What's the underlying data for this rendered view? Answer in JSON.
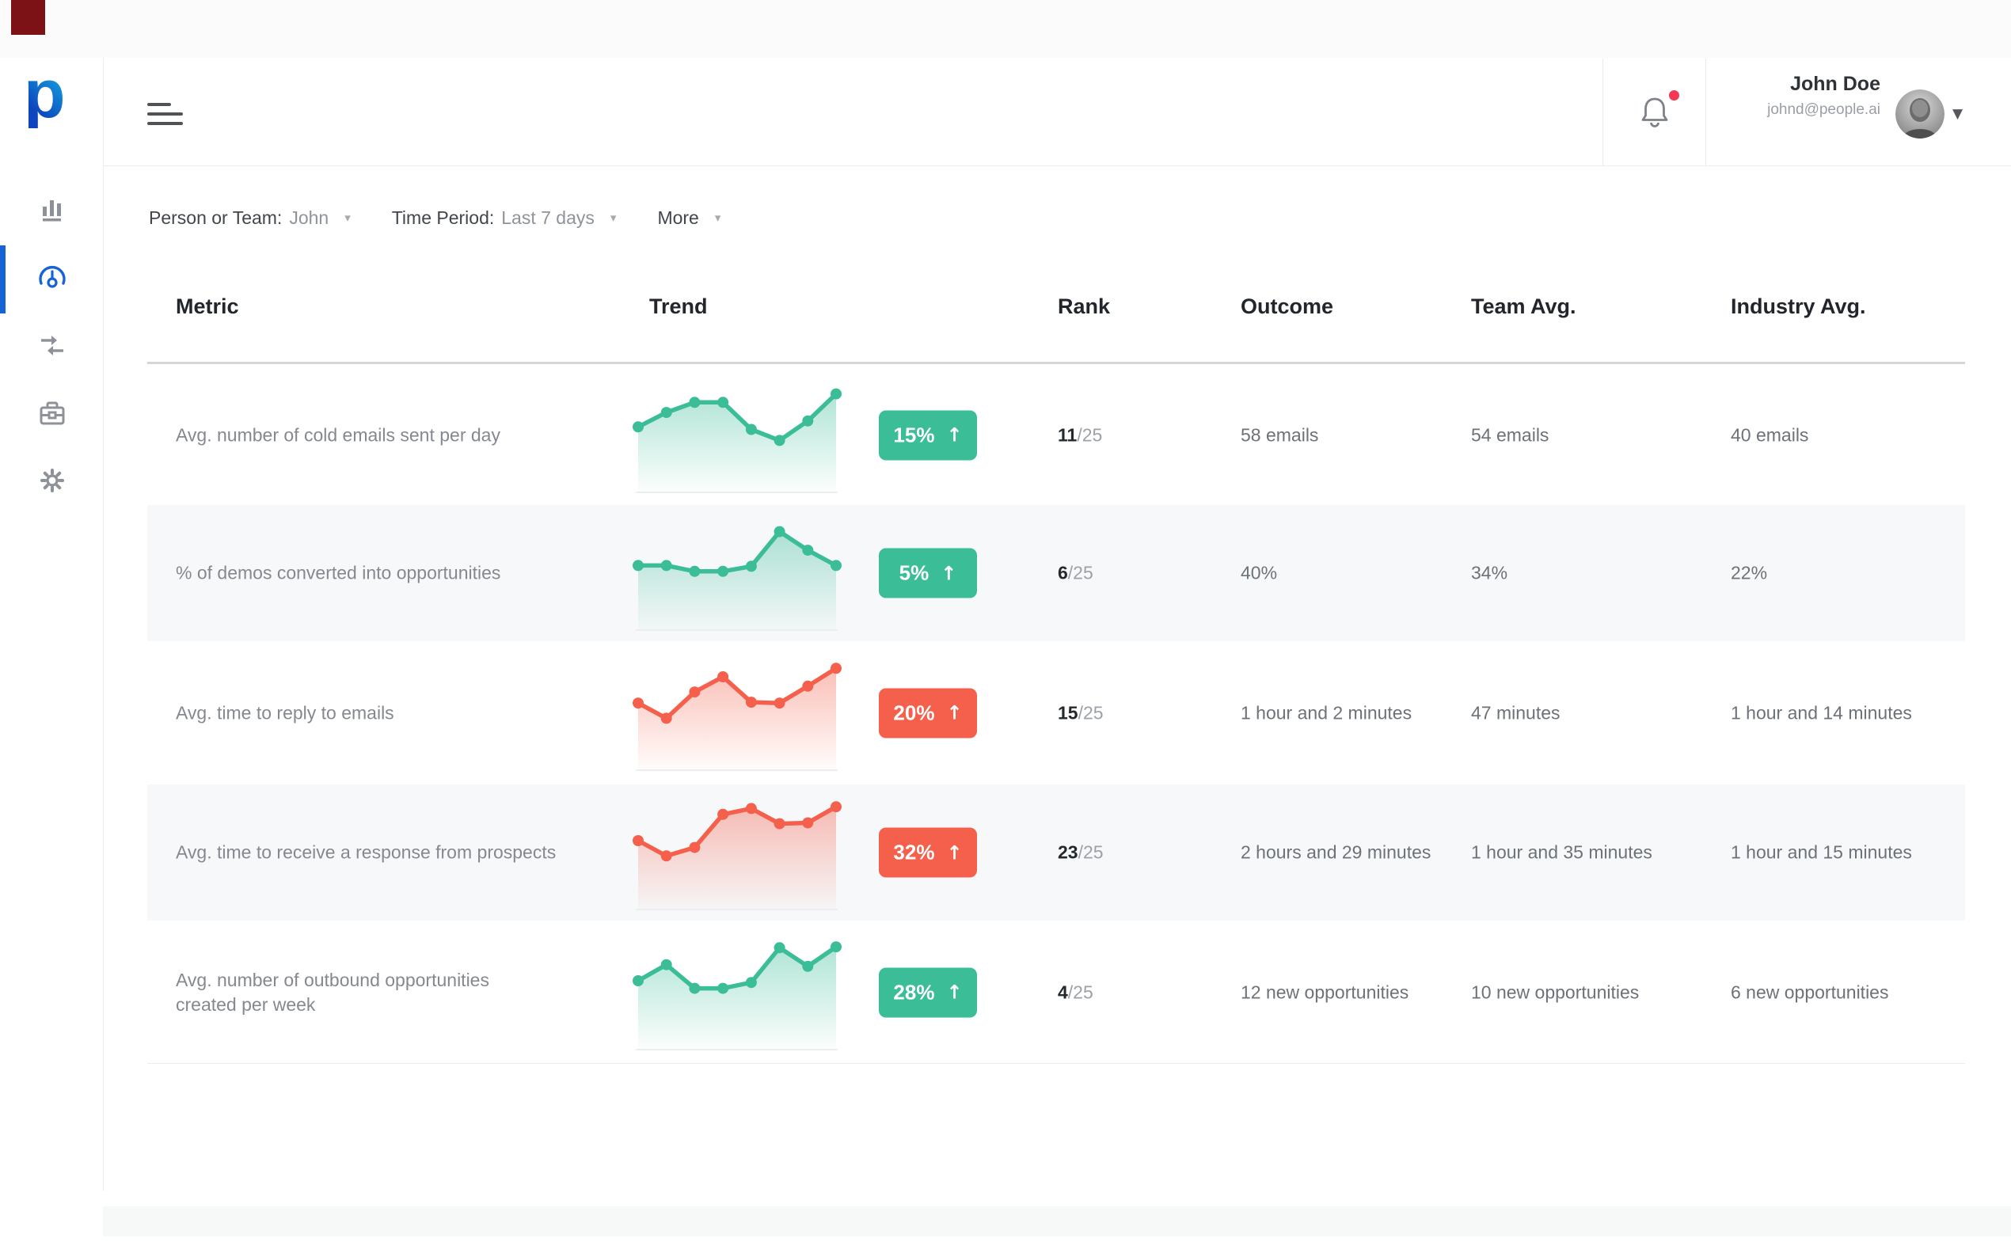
{
  "sidebar": {
    "logo_letter": "p",
    "items": [
      {
        "icon": "bar-chart-icon"
      },
      {
        "icon": "gauge-icon",
        "active": true
      },
      {
        "icon": "transfer-arrows-icon"
      },
      {
        "icon": "briefcase-icon"
      },
      {
        "icon": "gear-icon"
      }
    ]
  },
  "header": {
    "user_name": "John Doe",
    "user_email": "johnd@people.ai",
    "caret": "▼"
  },
  "filters": [
    {
      "label": "Person or Team:",
      "value": "John",
      "caret": "▾"
    },
    {
      "label": "Time Period:",
      "value": "Last 7 days",
      "caret": "▾"
    },
    {
      "label": "More",
      "value": "",
      "caret": "▾"
    }
  ],
  "table": {
    "columns": [
      "Metric",
      "Trend",
      "Rank",
      "Outcome",
      "Team Avg.",
      "Industry Avg."
    ],
    "rows": [
      {
        "metric": "Avg. number of cold emails sent per day",
        "trend": {
          "color": "green",
          "change": "15%",
          "arrow": "↑",
          "points": [
            0.53,
            0.7,
            0.82,
            0.82,
            0.5,
            0.37,
            0.6,
            0.92
          ]
        },
        "rank_value": "11",
        "rank_total": "/25",
        "outcome": "58 emails",
        "team_avg": "54 emails",
        "industry_avg": "40 emails",
        "shaded": false
      },
      {
        "metric": "% of demos converted into opportunities",
        "trend": {
          "color": "green",
          "change": "5%",
          "arrow": "↑",
          "points": [
            0.52,
            0.52,
            0.45,
            0.45,
            0.51,
            0.92,
            0.7,
            0.52
          ]
        },
        "rank_value": "6",
        "rank_total": "/25",
        "outcome": "40%",
        "team_avg": "34%",
        "industry_avg": "22%",
        "shaded": true
      },
      {
        "metric": "Avg. time to reply to emails",
        "trend": {
          "color": "red",
          "change": "20%",
          "arrow": "↑",
          "points": [
            0.55,
            0.37,
            0.68,
            0.86,
            0.56,
            0.55,
            0.75,
            0.96
          ]
        },
        "rank_value": "15",
        "rank_total": "/25",
        "outcome": "1 hour and 2 minutes",
        "team_avg": "47 minutes",
        "industry_avg": "1 hour and 14 minutes",
        "shaded": false
      },
      {
        "metric": "Avg. time to receive a response from prospects",
        "trend": {
          "color": "red",
          "change": "32%",
          "arrow": "↑",
          "points": [
            0.57,
            0.39,
            0.49,
            0.88,
            0.95,
            0.77,
            0.78,
            0.97
          ]
        },
        "rank_value": "23",
        "rank_total": "/25",
        "outcome": "2 hours and 29 minutes",
        "team_avg": "1 hour and 35 minutes",
        "industry_avg": "1 hour and 15 minutes",
        "shaded": true
      },
      {
        "metric": "Avg. number of outbound opportunities\ncreated per week",
        "trend": {
          "color": "green",
          "change": "28%",
          "arrow": "↑",
          "points": [
            0.57,
            0.76,
            0.48,
            0.48,
            0.55,
            0.96,
            0.74,
            0.97
          ]
        },
        "rank_value": "4",
        "rank_total": "/25",
        "outcome": "12 new opportunities",
        "team_avg": "10 new opportunities",
        "industry_avg": "6 new opportunities",
        "shaded": false
      }
    ]
  },
  "colors": {
    "green": "#3bbd97",
    "red": "#f4604c",
    "sidebar_active": "#1663d8",
    "notification_dot": "#f43753"
  }
}
